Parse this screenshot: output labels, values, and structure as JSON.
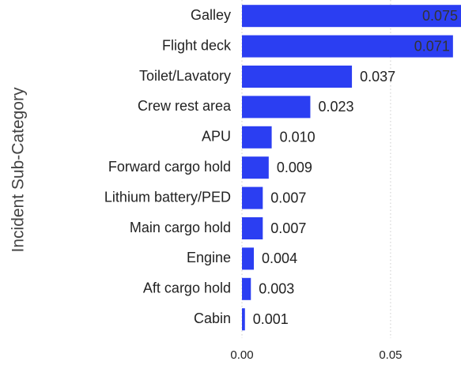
{
  "chart_data": {
    "type": "bar",
    "orientation": "horizontal",
    "y_axis_label": "Incident Sub-Category",
    "categories": [
      "Galley",
      "Flight deck",
      "Toilet/Lavatory",
      "Crew rest area",
      "APU",
      "Forward cargo hold",
      "Lithium battery/PED",
      "Main cargo hold",
      "Engine",
      "Aft cargo hold",
      "Cabin"
    ],
    "values": [
      0.075,
      0.071,
      0.037,
      0.023,
      0.01,
      0.009,
      0.007,
      0.007,
      0.004,
      0.003,
      0.001
    ],
    "value_labels": [
      "0.075",
      "0.071",
      "0.037",
      "0.023",
      "0.010",
      "0.009",
      "0.007",
      "0.007",
      "0.004",
      "0.003",
      "0.001"
    ],
    "color": "#2b3ef2",
    "xlim": [
      0,
      0.0737
    ],
    "xticks": [
      {
        "value": 0,
        "label": "0.00"
      },
      {
        "value": 0.05,
        "label": "0.05"
      }
    ],
    "grid": true
  }
}
